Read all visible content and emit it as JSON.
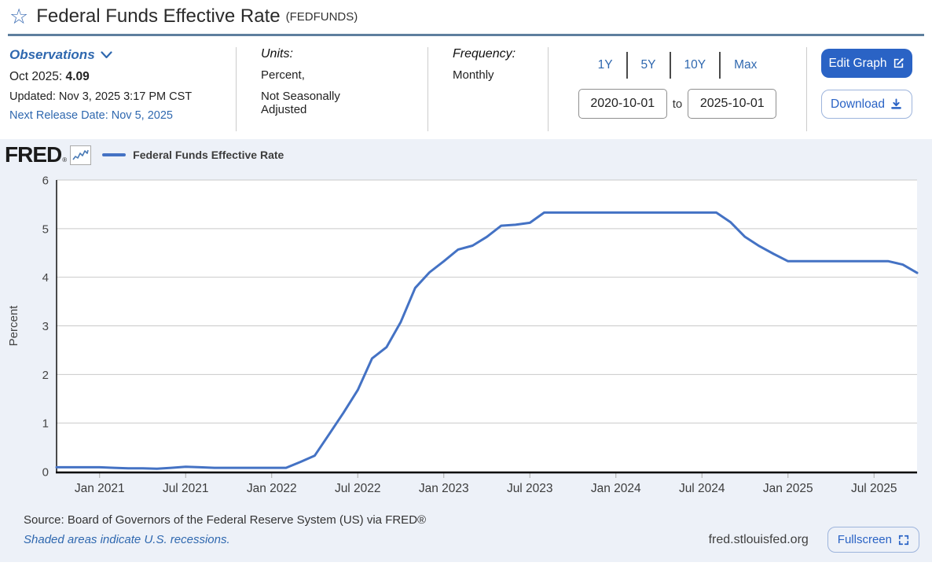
{
  "header": {
    "title": "Federal Funds Effective Rate",
    "series_id": "(FEDFUNDS)"
  },
  "meta": {
    "observations_label": "Observations",
    "latest_label": "Oct 2025:",
    "latest_value": "4.09",
    "updated": "Updated: Nov 3, 2025 3:17 PM CST",
    "next_release": "Next Release Date: Nov 5, 2025",
    "units_label": "Units:",
    "units_line1": "Percent,",
    "units_line2": "Not Seasonally Adjusted",
    "frequency_label": "Frequency:",
    "frequency_value": "Monthly",
    "ranges": [
      "1Y",
      "5Y",
      "10Y",
      "Max"
    ],
    "date_from": "2020-10-01",
    "date_to_label": "to",
    "date_to": "2025-10-01",
    "edit_graph_label": "Edit Graph",
    "download_label": "Download"
  },
  "legend": {
    "logo": "FRED",
    "reg": "®",
    "series_label": "Federal Funds Effective Rate"
  },
  "footer": {
    "source": "Source: Board of Governors of the Federal Reserve System (US) via FRED®",
    "recessions_note": "Shaded areas indicate U.S. recessions.",
    "site": "fred.stlouisfed.org",
    "fullscreen_label": "Fullscreen"
  },
  "colors": {
    "line": "#4472c4",
    "link": "#2f68af",
    "button": "#2a63c5",
    "panel_bg": "#edf1f8",
    "grid": "#c9c9c9",
    "axis": "#000000"
  },
  "chart_data": {
    "type": "line",
    "title": "Federal Funds Effective Rate",
    "ylabel": "Percent",
    "ylim": [
      0,
      6
    ],
    "yticks": [
      0,
      1,
      2,
      3,
      4,
      5,
      6
    ],
    "grid": true,
    "legend_position": "top-left",
    "x_range": [
      "2020-10",
      "2025-10"
    ],
    "xtick_labels": [
      "Jan 2021",
      "Jul 2021",
      "Jan 2022",
      "Jul 2022",
      "Jan 2023",
      "Jul 2023",
      "Jan 2024",
      "Jul 2024",
      "Jan 2025",
      "Jul 2025"
    ],
    "xtick_first_index": 3,
    "xtick_step": 6,
    "x": [
      "2020-10",
      "2020-11",
      "2020-12",
      "2021-01",
      "2021-02",
      "2021-03",
      "2021-04",
      "2021-05",
      "2021-06",
      "2021-07",
      "2021-08",
      "2021-09",
      "2021-10",
      "2021-11",
      "2021-12",
      "2022-01",
      "2022-02",
      "2022-03",
      "2022-04",
      "2022-05",
      "2022-06",
      "2022-07",
      "2022-08",
      "2022-09",
      "2022-10",
      "2022-11",
      "2022-12",
      "2023-01",
      "2023-02",
      "2023-03",
      "2023-04",
      "2023-05",
      "2023-06",
      "2023-07",
      "2023-08",
      "2023-09",
      "2023-10",
      "2023-11",
      "2023-12",
      "2024-01",
      "2024-02",
      "2024-03",
      "2024-04",
      "2024-05",
      "2024-06",
      "2024-07",
      "2024-08",
      "2024-09",
      "2024-10",
      "2024-11",
      "2024-12",
      "2025-01",
      "2025-02",
      "2025-03",
      "2025-04",
      "2025-05",
      "2025-06",
      "2025-07",
      "2025-08",
      "2025-09",
      "2025-10"
    ],
    "series": [
      {
        "name": "Federal Funds Effective Rate",
        "values": [
          0.09,
          0.09,
          0.09,
          0.09,
          0.08,
          0.07,
          0.07,
          0.06,
          0.08,
          0.1,
          0.09,
          0.08,
          0.08,
          0.08,
          0.08,
          0.08,
          0.08,
          0.2,
          0.33,
          0.77,
          1.21,
          1.68,
          2.33,
          2.56,
          3.08,
          3.78,
          4.1,
          4.33,
          4.57,
          4.65,
          4.83,
          5.06,
          5.08,
          5.12,
          5.33,
          5.33,
          5.33,
          5.33,
          5.33,
          5.33,
          5.33,
          5.33,
          5.33,
          5.33,
          5.33,
          5.33,
          5.33,
          5.13,
          4.83,
          4.64,
          4.48,
          4.33,
          4.33,
          4.33,
          4.33,
          4.33,
          4.33,
          4.33,
          4.33,
          4.26,
          4.09
        ]
      }
    ]
  }
}
